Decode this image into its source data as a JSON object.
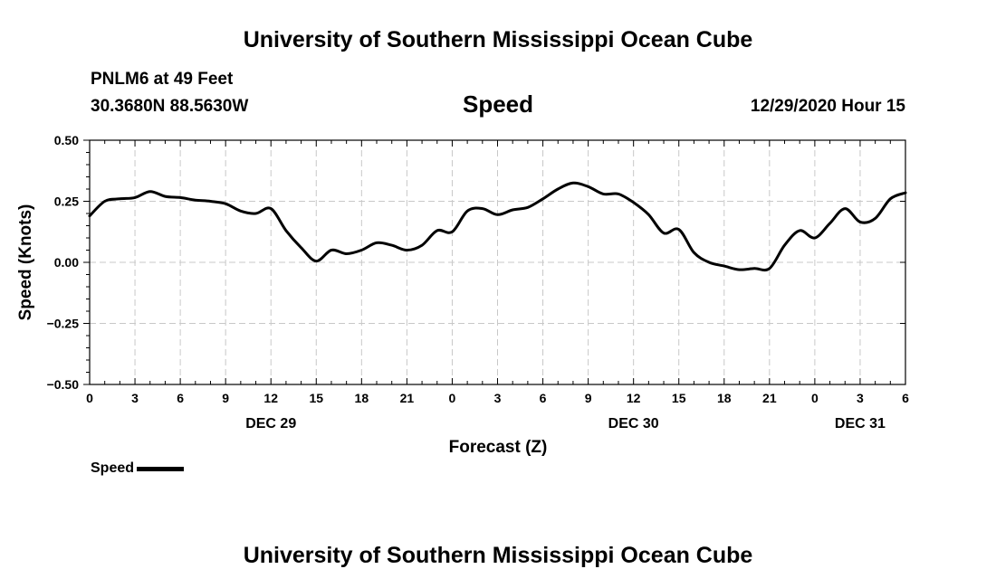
{
  "header": {
    "banner_top": "University of Southern Mississippi Ocean Cube",
    "station": "PNLM6 at 49 Feet",
    "coordinates": "30.3680N 88.5630W",
    "timestamp": "12/29/2020 Hour 15",
    "banner_bottom": "University of Southern Mississippi Ocean Cube"
  },
  "legend": {
    "label": "Speed"
  },
  "colors": {
    "line": "#000000",
    "grid": "#c8c8c8"
  },
  "chart_data": {
    "type": "line",
    "title": "Speed",
    "xlabel": "Forecast (Z)",
    "ylabel": "Speed (Knots)",
    "xlim": [
      0,
      54
    ],
    "ylim": [
      -0.5,
      0.5
    ],
    "y_ticks": [
      -0.5,
      -0.25,
      0.0,
      0.25,
      0.5
    ],
    "y_tick_labels": [
      "−0.50",
      "−0.25",
      "0.00",
      "0.25",
      "0.50"
    ],
    "x_ticks": [
      0,
      3,
      6,
      9,
      12,
      15,
      18,
      21,
      24,
      27,
      30,
      33,
      36,
      39,
      42,
      45,
      48,
      51,
      54
    ],
    "x_tick_labels": [
      "0",
      "3",
      "6",
      "9",
      "12",
      "15",
      "18",
      "21",
      "0",
      "3",
      "6",
      "9",
      "12",
      "15",
      "18",
      "21",
      "0",
      "3",
      "6"
    ],
    "date_labels": [
      {
        "x": 12,
        "label": "DEC 29"
      },
      {
        "x": 36,
        "label": "DEC 30"
      },
      {
        "x": 51,
        "label": "DEC 31"
      }
    ],
    "grid": true,
    "series": [
      {
        "name": "Speed",
        "x": [
          0,
          1,
          2,
          3,
          4,
          5,
          6,
          7,
          8,
          9,
          10,
          11,
          12,
          13,
          14,
          15,
          16,
          17,
          18,
          19,
          20,
          21,
          22,
          23,
          24,
          25,
          26,
          27,
          28,
          29,
          30,
          31,
          32,
          33,
          34,
          35,
          36,
          37,
          38,
          39,
          40,
          41,
          42,
          43,
          44,
          45,
          46,
          47,
          48,
          49,
          50,
          51,
          52,
          53,
          54
        ],
        "values": [
          0.19,
          0.25,
          0.26,
          0.265,
          0.29,
          0.27,
          0.265,
          0.255,
          0.25,
          0.24,
          0.21,
          0.2,
          0.22,
          0.13,
          0.06,
          0.005,
          0.05,
          0.035,
          0.05,
          0.08,
          0.07,
          0.05,
          0.07,
          0.13,
          0.125,
          0.21,
          0.22,
          0.195,
          0.215,
          0.225,
          0.26,
          0.3,
          0.325,
          0.31,
          0.28,
          0.28,
          0.245,
          0.195,
          0.12,
          0.135,
          0.04,
          0.0,
          -0.015,
          -0.03,
          -0.025,
          -0.025,
          0.07,
          0.13,
          0.1,
          0.16,
          0.22,
          0.165,
          0.18,
          0.26,
          0.285
        ]
      }
    ]
  }
}
